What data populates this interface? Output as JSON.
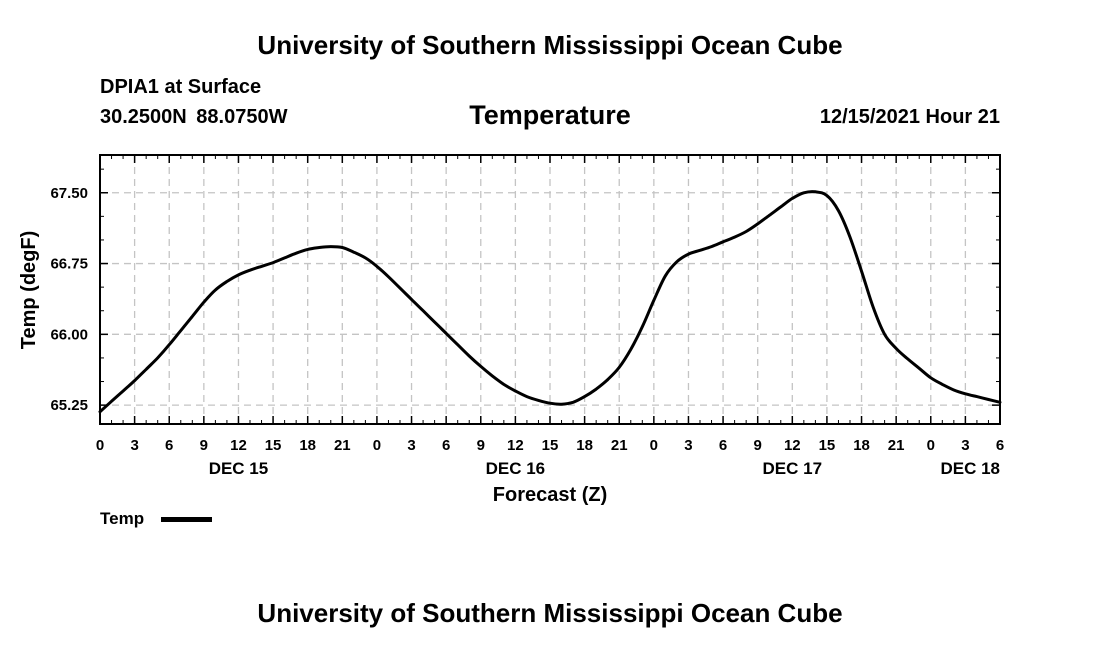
{
  "header": {
    "title": "University of Southern Mississippi Ocean Cube",
    "station": "DPIA1 at Surface",
    "coordinates": "30.2500N  88.0750W",
    "valid_time": "12/15/2021 Hour 21"
  },
  "footer": {
    "title": "University of Southern Mississippi Ocean Cube"
  },
  "chart_data": {
    "type": "line",
    "title": "Temperature",
    "xlabel": "Forecast (Z)",
    "ylabel": "Temp (degF)",
    "x_unit": "hours since 12/15 00Z",
    "xlim": [
      0,
      78
    ],
    "ylim": [
      65.05,
      67.9
    ],
    "yticks": [
      65.25,
      66.0,
      66.75,
      67.5
    ],
    "ytick_labels": [
      "65.25",
      "66.00",
      "66.75",
      "67.50"
    ],
    "xticks": [
      0,
      3,
      6,
      9,
      12,
      15,
      18,
      21,
      24,
      27,
      30,
      33,
      36,
      39,
      42,
      45,
      48,
      51,
      54,
      57,
      60,
      63,
      66,
      69,
      72,
      75,
      78
    ],
    "xtick_labels": [
      "0",
      "3",
      "6",
      "9",
      "12",
      "15",
      "18",
      "21",
      "0",
      "3",
      "6",
      "9",
      "12",
      "15",
      "18",
      "21",
      "0",
      "3",
      "6",
      "9",
      "12",
      "15",
      "18",
      "21",
      "0",
      "3",
      "6"
    ],
    "date_labels": [
      {
        "x": 12,
        "label": "DEC 15"
      },
      {
        "x": 36,
        "label": "DEC 16"
      },
      {
        "x": 60,
        "label": "DEC 17"
      },
      {
        "x": 78,
        "label": "DEC 18"
      }
    ],
    "grid": true,
    "legend": {
      "position": "bottom-left",
      "entries": [
        "Temp"
      ]
    },
    "series": [
      {
        "name": "Temp",
        "color": "#000000",
        "x": [
          0,
          1,
          2,
          3,
          4,
          5,
          6,
          7,
          8,
          9,
          10,
          11,
          12,
          13,
          14,
          15,
          16,
          17,
          18,
          19,
          20,
          21,
          22,
          23,
          24,
          25,
          26,
          27,
          28,
          29,
          30,
          31,
          32,
          33,
          34,
          35,
          36,
          37,
          38,
          39,
          40,
          41,
          42,
          43,
          44,
          45,
          46,
          47,
          48,
          49,
          50,
          51,
          52,
          53,
          54,
          55,
          56,
          57,
          58,
          59,
          60,
          61,
          62,
          63,
          64,
          65,
          66,
          67,
          68,
          69,
          70,
          71,
          72,
          73,
          74,
          75,
          76,
          77,
          78
        ],
        "values": [
          65.18,
          65.29,
          65.4,
          65.51,
          65.63,
          65.75,
          65.89,
          66.04,
          66.19,
          66.34,
          66.47,
          66.56,
          66.63,
          66.68,
          66.72,
          66.76,
          66.81,
          66.86,
          66.9,
          66.92,
          66.93,
          66.92,
          66.87,
          66.81,
          66.72,
          66.61,
          66.49,
          66.37,
          66.25,
          66.13,
          66.01,
          65.89,
          65.77,
          65.66,
          65.56,
          65.47,
          65.4,
          65.34,
          65.3,
          65.27,
          65.26,
          65.28,
          65.34,
          65.42,
          65.52,
          65.65,
          65.84,
          66.08,
          66.36,
          66.62,
          66.77,
          66.85,
          66.89,
          66.93,
          66.98,
          67.03,
          67.09,
          67.17,
          67.26,
          67.35,
          67.44,
          67.5,
          67.51,
          67.47,
          67.31,
          67.03,
          66.67,
          66.29,
          66.0,
          65.85,
          65.74,
          65.64,
          65.54,
          65.47,
          65.41,
          65.37,
          65.34,
          65.31,
          65.28
        ]
      }
    ]
  }
}
